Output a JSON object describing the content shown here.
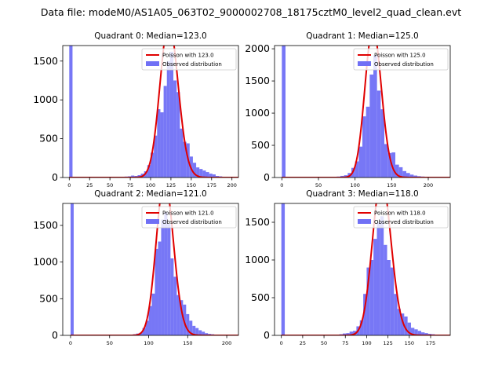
{
  "figure_title": "Data file: modeM0/AS1A05_063T02_9000002708_18175cztM0_level2_quad_clean.evt",
  "chart_data": [
    {
      "type": "bar",
      "title": "Quadrant 0: Median=123.0",
      "xlim": [
        -8,
        208
      ],
      "ylim": [
        0,
        1700
      ],
      "xticks": [
        0,
        25,
        50,
        75,
        100,
        125,
        150,
        175,
        200
      ],
      "yticks": [
        0,
        500,
        1000,
        1500
      ],
      "median": 123.0,
      "legend": {
        "position": "top-right",
        "poisson_label": "Poisson with 123.0",
        "observed_label": "Observed distribution"
      },
      "colors": {
        "bar": "#7070f5",
        "curve": "#e00000"
      },
      "bins": [
        [
          0,
          4,
          1700
        ],
        [
          68,
          4,
          12
        ],
        [
          72,
          4,
          15
        ],
        [
          76,
          4,
          25
        ],
        [
          80,
          4,
          20
        ],
        [
          84,
          4,
          30
        ],
        [
          88,
          4,
          50
        ],
        [
          92,
          4,
          80
        ],
        [
          96,
          4,
          160
        ],
        [
          100,
          4,
          320
        ],
        [
          104,
          4,
          540
        ],
        [
          108,
          4,
          880
        ],
        [
          112,
          4,
          840
        ],
        [
          116,
          4,
          1180
        ],
        [
          120,
          4,
          1500
        ],
        [
          124,
          4,
          1620
        ],
        [
          128,
          4,
          1250
        ],
        [
          132,
          4,
          1100
        ],
        [
          136,
          4,
          630
        ],
        [
          140,
          4,
          460
        ],
        [
          144,
          4,
          440
        ],
        [
          148,
          4,
          270
        ],
        [
          152,
          4,
          190
        ],
        [
          156,
          4,
          130
        ],
        [
          160,
          4,
          110
        ],
        [
          164,
          4,
          90
        ],
        [
          168,
          4,
          70
        ],
        [
          172,
          4,
          50
        ],
        [
          176,
          4,
          40
        ],
        [
          180,
          4,
          20
        ],
        [
          184,
          4,
          15
        ],
        [
          188,
          4,
          10
        ]
      ]
    },
    {
      "type": "bar",
      "title": "Quadrant 1: Median=125.0",
      "xlim": [
        -10,
        230
      ],
      "ylim": [
        0,
        2050
      ],
      "xticks": [
        0,
        50,
        100,
        150,
        200
      ],
      "yticks": [
        0,
        500,
        1000,
        1500,
        2000
      ],
      "median": 125.0,
      "legend": {
        "position": "top-right",
        "poisson_label": "Poisson with 125.0",
        "observed_label": "Observed distribution"
      },
      "colors": {
        "bar": "#7070f5",
        "curve": "#e00000"
      },
      "bins": [
        [
          0,
          5,
          2050
        ],
        [
          75,
          5,
          15
        ],
        [
          80,
          5,
          25
        ],
        [
          85,
          5,
          35
        ],
        [
          90,
          5,
          70
        ],
        [
          95,
          5,
          150
        ],
        [
          100,
          5,
          250
        ],
        [
          105,
          5,
          480
        ],
        [
          110,
          5,
          950
        ],
        [
          115,
          5,
          1100
        ],
        [
          120,
          5,
          1600
        ],
        [
          125,
          5,
          1900
        ],
        [
          130,
          5,
          1350
        ],
        [
          135,
          5,
          1060
        ],
        [
          140,
          5,
          520
        ],
        [
          145,
          5,
          380
        ],
        [
          150,
          5,
          390
        ],
        [
          155,
          5,
          200
        ],
        [
          160,
          5,
          160
        ],
        [
          165,
          5,
          100
        ],
        [
          170,
          5,
          70
        ],
        [
          175,
          5,
          45
        ],
        [
          180,
          5,
          30
        ],
        [
          185,
          5,
          20
        ],
        [
          190,
          5,
          15
        ],
        [
          195,
          5,
          10
        ],
        [
          200,
          5,
          8
        ],
        [
          205,
          5,
          5
        ],
        [
          210,
          5,
          3
        ]
      ]
    },
    {
      "type": "bar",
      "title": "Quadrant 2: Median=121.0",
      "xlim": [
        -10,
        215
      ],
      "ylim": [
        0,
        1800
      ],
      "xticks": [
        0,
        50,
        100,
        150,
        200
      ],
      "yticks": [
        0,
        500,
        1000,
        1500
      ],
      "median": 121.0,
      "legend": {
        "position": "top-right",
        "poisson_label": "Poisson with 121.0",
        "observed_label": "Observed distribution"
      },
      "colors": {
        "bar": "#7070f5",
        "curve": "#e00000"
      },
      "bins": [
        [
          0,
          4,
          1800
        ],
        [
          76,
          4,
          10
        ],
        [
          80,
          4,
          15
        ],
        [
          84,
          4,
          25
        ],
        [
          88,
          4,
          35
        ],
        [
          92,
          4,
          100
        ],
        [
          96,
          4,
          200
        ],
        [
          100,
          4,
          400
        ],
        [
          104,
          4,
          570
        ],
        [
          108,
          4,
          1180
        ],
        [
          112,
          4,
          1280
        ],
        [
          116,
          4,
          1580
        ],
        [
          120,
          4,
          1680
        ],
        [
          124,
          4,
          1520
        ],
        [
          128,
          4,
          1050
        ],
        [
          132,
          4,
          800
        ],
        [
          136,
          4,
          550
        ],
        [
          140,
          4,
          480
        ],
        [
          144,
          4,
          420
        ],
        [
          148,
          4,
          290
        ],
        [
          152,
          4,
          200
        ],
        [
          156,
          4,
          130
        ],
        [
          160,
          4,
          100
        ],
        [
          164,
          4,
          70
        ],
        [
          168,
          4,
          50
        ],
        [
          172,
          4,
          30
        ],
        [
          176,
          4,
          20
        ],
        [
          180,
          4,
          15
        ],
        [
          184,
          4,
          10
        ],
        [
          188,
          4,
          8
        ],
        [
          192,
          4,
          5
        ]
      ]
    },
    {
      "type": "bar",
      "title": "Quadrant 3: Median=118.0",
      "xlim": [
        -8,
        198
      ],
      "ylim": [
        0,
        1750
      ],
      "xticks": [
        0,
        25,
        50,
        75,
        100,
        125,
        150,
        175
      ],
      "yticks": [
        0,
        500,
        1000,
        1500
      ],
      "median": 118.0,
      "legend": {
        "position": "top-right",
        "poisson_label": "Poisson with 118.0",
        "observed_label": "Observed distribution"
      },
      "colors": {
        "bar": "#7070f5",
        "curve": "#e00000"
      },
      "bins": [
        [
          0,
          4,
          1750
        ],
        [
          64,
          4,
          10
        ],
        [
          68,
          4,
          15
        ],
        [
          72,
          4,
          25
        ],
        [
          76,
          4,
          30
        ],
        [
          80,
          4,
          50
        ],
        [
          84,
          4,
          60
        ],
        [
          88,
          4,
          120
        ],
        [
          92,
          4,
          200
        ],
        [
          96,
          4,
          550
        ],
        [
          100,
          4,
          900
        ],
        [
          104,
          4,
          1000
        ],
        [
          108,
          4,
          1280
        ],
        [
          112,
          4,
          1500
        ],
        [
          116,
          4,
          1580
        ],
        [
          120,
          4,
          1200
        ],
        [
          124,
          4,
          1000
        ],
        [
          128,
          4,
          900
        ],
        [
          132,
          4,
          550
        ],
        [
          136,
          4,
          350
        ],
        [
          140,
          4,
          290
        ],
        [
          144,
          4,
          250
        ],
        [
          148,
          4,
          170
        ],
        [
          152,
          4,
          100
        ],
        [
          156,
          4,
          80
        ],
        [
          160,
          4,
          60
        ],
        [
          164,
          4,
          40
        ],
        [
          168,
          4,
          30
        ],
        [
          172,
          4,
          20
        ],
        [
          176,
          4,
          15
        ],
        [
          180,
          4,
          10
        ],
        [
          184,
          4,
          8
        ],
        [
          188,
          4,
          5
        ]
      ]
    }
  ]
}
